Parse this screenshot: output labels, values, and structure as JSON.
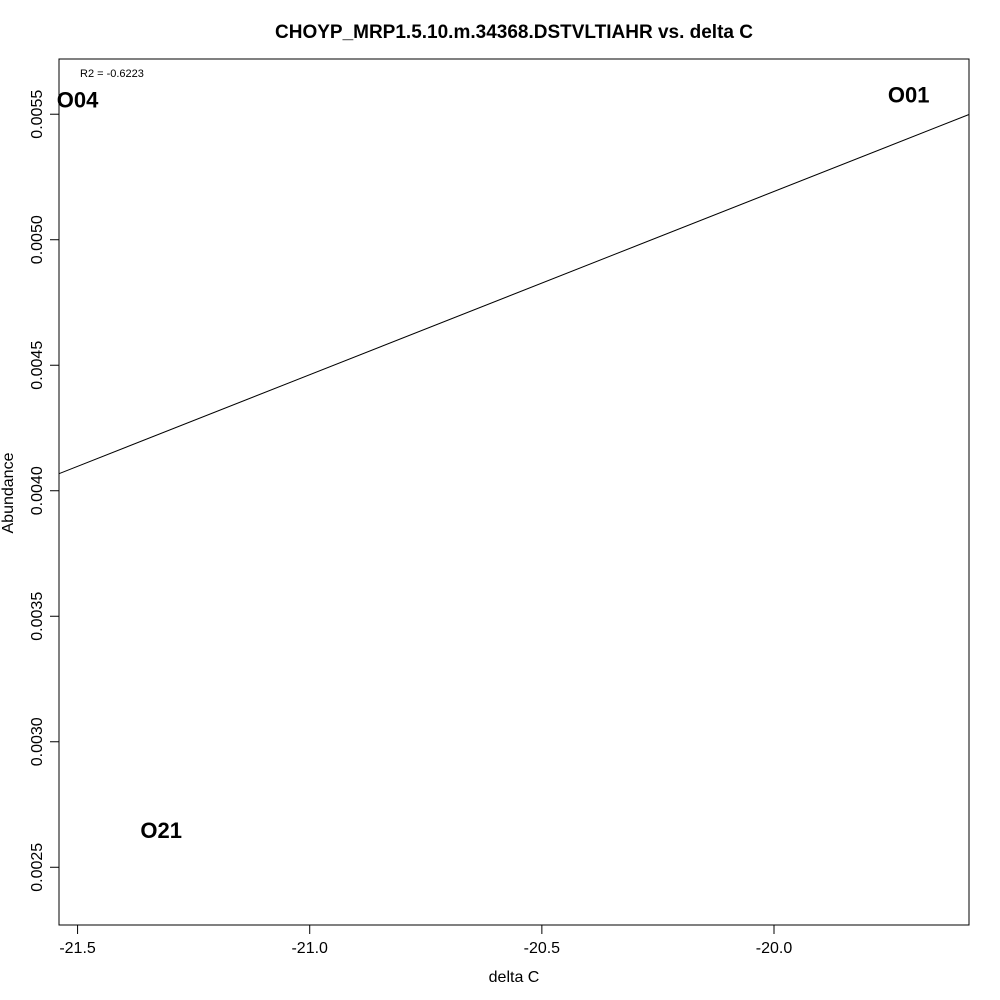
{
  "chart_data": {
    "type": "scatter",
    "title": "CHOYP_MRP1.5.10.m.34368.DSTVLTIAHR vs. delta C",
    "xlabel": "delta C",
    "ylabel": "Abundance",
    "xlim": [
      -21.54,
      -19.58
    ],
    "ylim": [
      0.00227,
      0.00572
    ],
    "x_ticks": [
      {
        "value": -21.5,
        "label": "-21.5"
      },
      {
        "value": -21.0,
        "label": "-21.0"
      },
      {
        "value": -20.5,
        "label": "-20.5"
      },
      {
        "value": -20.0,
        "label": "-20.0"
      }
    ],
    "y_ticks": [
      {
        "value": 0.0025,
        "label": "0.0025"
      },
      {
        "value": 0.003,
        "label": "0.0030"
      },
      {
        "value": 0.0035,
        "label": "0.0035"
      },
      {
        "value": 0.004,
        "label": "0.0040"
      },
      {
        "value": 0.0045,
        "label": "0.0045"
      },
      {
        "value": 0.005,
        "label": "0.0050"
      },
      {
        "value": 0.0055,
        "label": "0.0055"
      }
    ],
    "points": [
      {
        "label": "O04",
        "x": -21.5,
        "y": 0.00555
      },
      {
        "label": "O01",
        "x": -19.71,
        "y": 0.00557
      },
      {
        "label": "O21",
        "x": -21.32,
        "y": 0.00264
      }
    ],
    "fit_line": {
      "x": [
        -21.54,
        -19.58
      ],
      "y": [
        0.004068,
        0.005499
      ]
    },
    "annotation": "R2 = -0.6223",
    "grid": false,
    "legend": "none",
    "line_color": "#000000"
  }
}
